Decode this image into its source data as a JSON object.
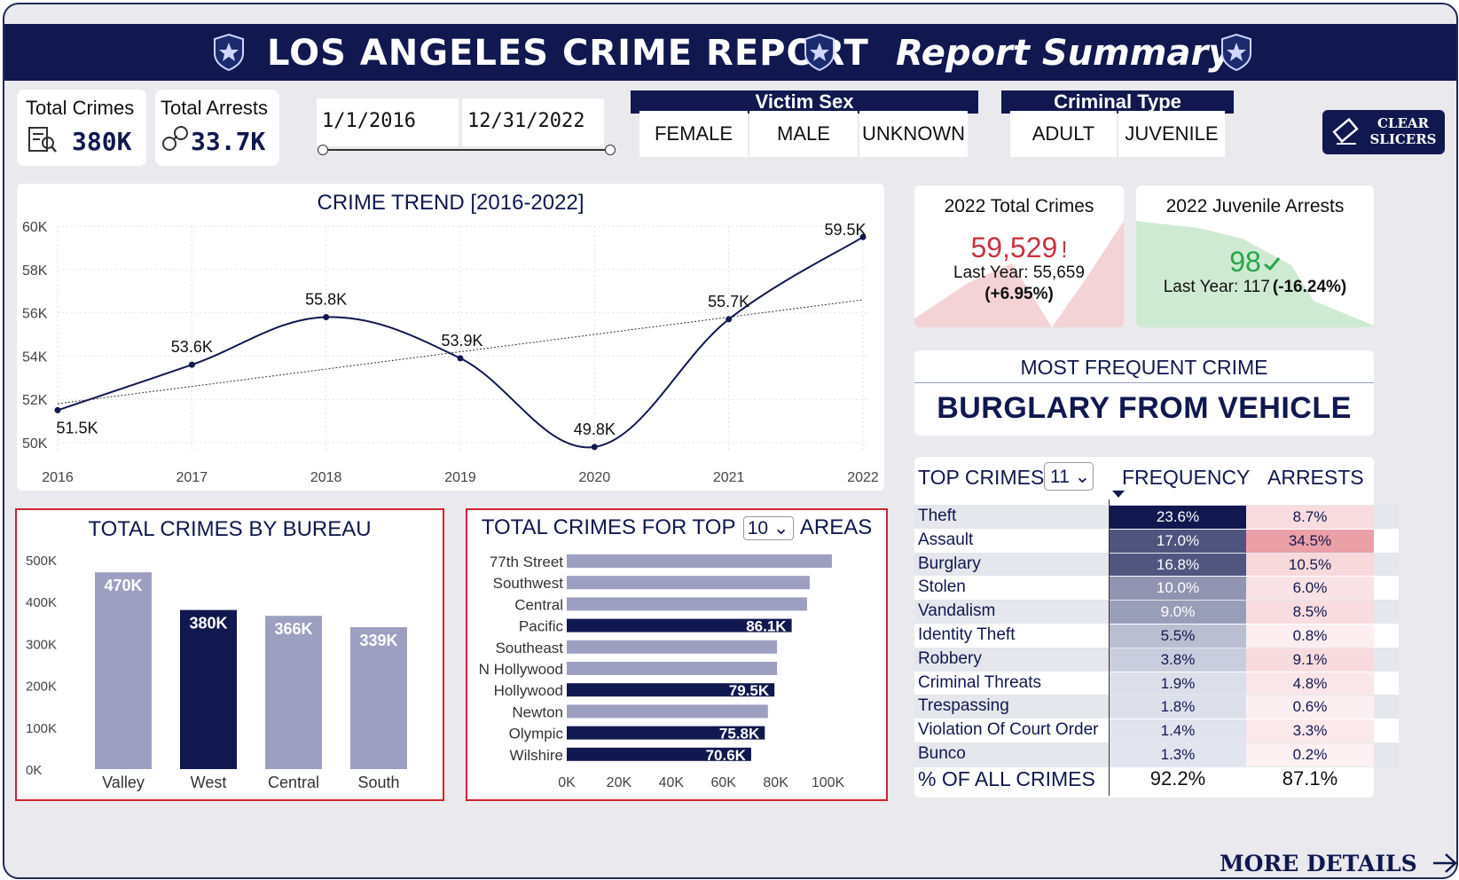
{
  "header": {
    "title": "LOS ANGELES CRIME REPORT",
    "subtitle": "Report Summary",
    "badge_icon": "police-badge-icon",
    "colors": {
      "navy": "#10184f",
      "accent_red": "#d0242c",
      "bar_light": "#9c9fbf"
    }
  },
  "kpis": {
    "total_crimes": {
      "label": "Total Crimes",
      "value": "380K",
      "icon": "crime-report-icon"
    },
    "total_arrests": {
      "label": "Total Arrests",
      "value": "33.7K",
      "icon": "handcuffs-icon"
    }
  },
  "date_range": {
    "start": "1/1/2016",
    "end": "12/31/2022"
  },
  "slicers": {
    "victim_sex": {
      "title": "Victim Sex",
      "options": [
        "FEMALE",
        "MALE",
        "UNKNOWN"
      ]
    },
    "criminal_type": {
      "title": "Criminal Type",
      "options": [
        "ADULT",
        "JUVENILE"
      ]
    },
    "clear_label": "CLEAR SLICERS"
  },
  "crime_trend": {
    "title": "CRIME TREND [2016-2022]",
    "type": "line",
    "x": [
      "2016",
      "2017",
      "2018",
      "2019",
      "2020",
      "2021",
      "2022"
    ],
    "values": [
      51.5,
      53.6,
      55.8,
      53.9,
      49.8,
      55.7,
      59.5
    ],
    "labels": [
      "51.5K",
      "53.6K",
      "55.8K",
      "53.9K",
      "49.8K",
      "55.7K",
      "59.5K"
    ],
    "y_ticks": [
      "50K",
      "52K",
      "54K",
      "56K",
      "58K",
      "60K"
    ],
    "ylim": [
      50,
      60
    ],
    "trend_line": [
      51.8,
      56.6
    ]
  },
  "card_2022_crimes": {
    "title": "2022 Total Crimes",
    "value": "59,529",
    "alert": "!",
    "last_year": "Last Year: 55,659",
    "change": "(+6.95%)"
  },
  "card_2022_juvenile": {
    "title": "2022 Juvenile Arrests",
    "value": "98",
    "last_year": "Last Year: 117",
    "change": "(-16.24%)"
  },
  "most_frequent": {
    "title": "MOST FREQUENT CRIME",
    "value": "BURGLARY FROM VEHICLE"
  },
  "bureau_chart": {
    "title": "TOTAL CRIMES BY BUREAU",
    "type": "bar",
    "categories": [
      "Valley",
      "West",
      "Central",
      "South"
    ],
    "values": [
      470,
      380,
      366,
      339
    ],
    "labels": [
      "470K",
      "380K",
      "366K",
      "339K"
    ],
    "highlight": [
      false,
      true,
      false,
      false
    ],
    "y_ticks": [
      "0K",
      "100K",
      "200K",
      "300K",
      "400K",
      "500K"
    ],
    "ylim": [
      0,
      500
    ]
  },
  "areas_chart": {
    "title_prefix": "TOTAL CRIMES FOR TOP",
    "top_n": "10",
    "title_suffix": "AREAS",
    "type": "bar",
    "categories": [
      "77th Street",
      "Southwest",
      "Central",
      "Pacific",
      "Southeast",
      "N Hollywood",
      "Hollywood",
      "Newton",
      "Olympic",
      "Wilshire"
    ],
    "values": [
      101.5,
      93,
      92,
      86.1,
      80.5,
      80.5,
      79.5,
      77,
      75.8,
      70.6
    ],
    "labels": [
      "",
      "",
      "",
      "86.1K",
      "",
      "",
      "79.5K",
      "",
      "75.8K",
      "70.6K"
    ],
    "highlight": [
      false,
      false,
      false,
      true,
      false,
      false,
      true,
      false,
      true,
      true
    ],
    "x_ticks": [
      "0K",
      "20K",
      "40K",
      "60K",
      "80K",
      "100K"
    ],
    "xlim": [
      0,
      110
    ]
  },
  "top_crimes": {
    "title": "TOP CRIMES",
    "top_n": "11",
    "col_frequency": "FREQUENCY",
    "col_arrests": "ARRESTS",
    "rows": [
      {
        "name": "Theft",
        "frequency": "23.6%",
        "arrests": "8.7%"
      },
      {
        "name": "Assault",
        "frequency": "17.0%",
        "arrests": "34.5%"
      },
      {
        "name": "Burglary",
        "frequency": "16.8%",
        "arrests": "10.5%"
      },
      {
        "name": "Stolen",
        "frequency": "10.0%",
        "arrests": "6.0%"
      },
      {
        "name": "Vandalism",
        "frequency": "9.0%",
        "arrests": "8.5%"
      },
      {
        "name": "Identity Theft",
        "frequency": "5.5%",
        "arrests": "0.8%"
      },
      {
        "name": "Robbery",
        "frequency": "3.8%",
        "arrests": "9.1%"
      },
      {
        "name": "Criminal Threats",
        "frequency": "1.9%",
        "arrests": "4.8%"
      },
      {
        "name": "Trespassing",
        "frequency": "1.8%",
        "arrests": "0.6%"
      },
      {
        "name": "Violation Of Court Order",
        "frequency": "1.4%",
        "arrests": "3.3%"
      },
      {
        "name": "Bunco",
        "frequency": "1.3%",
        "arrests": "0.2%"
      }
    ],
    "total_label": "% OF ALL CRIMES",
    "total_frequency": "92.2%",
    "total_arrests": "87.1%"
  },
  "more_details": "MORE DETAILS"
}
